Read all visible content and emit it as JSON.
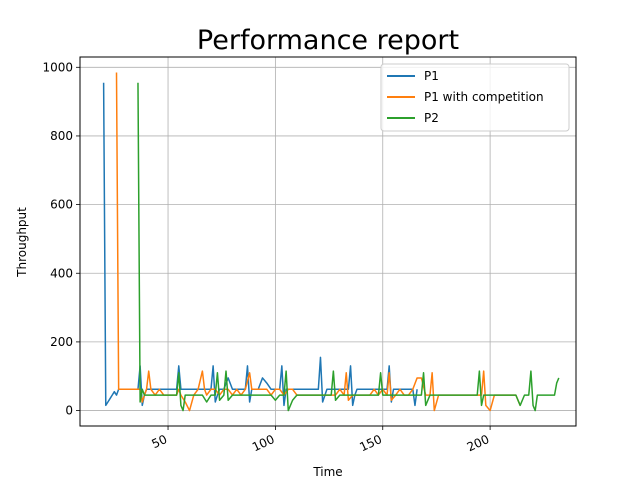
{
  "chart_data": {
    "type": "line",
    "title": "Performance report",
    "xlabel": "Time",
    "ylabel": "Throughput",
    "xlim": [
      9,
      240
    ],
    "ylim": [
      -45,
      1030
    ],
    "xticks": [
      50,
      100,
      150,
      200
    ],
    "yticks": [
      0,
      200,
      400,
      600,
      800,
      1000
    ],
    "xtick_rotation": 25,
    "grid": true,
    "legend_position": "top-right",
    "series": [
      {
        "name": "P1",
        "color": "#1f77b4",
        "x": [
          20,
          21,
          22,
          23,
          24,
          25,
          26,
          27,
          28,
          30,
          32,
          34,
          36,
          37,
          38,
          39,
          40,
          41,
          42,
          44,
          46,
          48,
          50,
          52,
          54,
          55,
          56,
          58,
          60,
          62,
          64,
          66,
          68,
          70,
          71,
          72,
          73,
          74,
          76,
          78,
          80,
          82,
          84,
          86,
          87,
          88,
          89,
          90,
          92,
          94,
          96,
          98,
          100,
          102,
          103,
          104,
          105,
          106,
          108,
          110,
          112,
          114,
          116,
          118,
          120,
          121,
          122,
          124,
          126,
          128,
          130,
          132,
          134,
          135,
          136,
          137,
          138,
          140,
          142,
          144,
          146,
          148,
          150,
          152,
          153,
          154,
          155,
          156,
          158,
          160,
          162,
          164,
          165,
          166
        ],
        "y": [
          955,
          15,
          25,
          35,
          45,
          55,
          45,
          62,
          62,
          62,
          62,
          62,
          62,
          130,
          15,
          45,
          62,
          62,
          62,
          62,
          62,
          62,
          62,
          62,
          62,
          130,
          62,
          62,
          62,
          62,
          62,
          62,
          62,
          62,
          130,
          25,
          45,
          62,
          62,
          95,
          62,
          62,
          62,
          62,
          130,
          25,
          62,
          62,
          62,
          95,
          80,
          62,
          62,
          62,
          130,
          15,
          62,
          62,
          62,
          62,
          62,
          62,
          62,
          62,
          62,
          155,
          25,
          62,
          62,
          62,
          62,
          62,
          62,
          130,
          15,
          45,
          62,
          62,
          62,
          62,
          62,
          62,
          62,
          62,
          130,
          25,
          62,
          62,
          62,
          62,
          62,
          62,
          15,
          62
        ]
      },
      {
        "name": "P1 with competition",
        "color": "#ff7f0e",
        "x": [
          26,
          27,
          28,
          30,
          32,
          34,
          36,
          37,
          38,
          39,
          40,
          41,
          42,
          44,
          46,
          48,
          50,
          52,
          54,
          55,
          56,
          58,
          60,
          62,
          64,
          66,
          67,
          68,
          70,
          72,
          74,
          76,
          78,
          80,
          82,
          84,
          86,
          88,
          89,
          90,
          92,
          94,
          96,
          98,
          100,
          102,
          104,
          106,
          108,
          110,
          112,
          114,
          116,
          118,
          120,
          122,
          124,
          126,
          128,
          130,
          132,
          133,
          134,
          136,
          138,
          140,
          142,
          144,
          146,
          148,
          150,
          152,
          153,
          154,
          156,
          158,
          160,
          162,
          164,
          166,
          168,
          170,
          172,
          173,
          174,
          176,
          178,
          180,
          182,
          184,
          186,
          188,
          190,
          192,
          194,
          196,
          197,
          198,
          200,
          202,
          204,
          206,
          208,
          210,
          212,
          214
        ],
        "y": [
          985,
          62,
          62,
          62,
          62,
          62,
          62,
          62,
          25,
          45,
          62,
          115,
          62,
          45,
          62,
          45,
          45,
          45,
          45,
          62,
          45,
          25,
          0,
          45,
          62,
          115,
          62,
          45,
          62,
          62,
          45,
          62,
          62,
          45,
          62,
          45,
          62,
          110,
          62,
          62,
          62,
          62,
          62,
          45,
          62,
          62,
          45,
          62,
          62,
          45,
          45,
          45,
          45,
          45,
          45,
          45,
          45,
          45,
          45,
          62,
          45,
          110,
          30,
          45,
          45,
          45,
          45,
          45,
          62,
          45,
          62,
          45,
          110,
          30,
          45,
          62,
          45,
          45,
          62,
          95,
          95,
          45,
          45,
          110,
          0,
          45,
          45,
          45,
          45,
          45,
          45,
          45,
          45,
          45,
          45,
          45,
          115,
          15,
          0,
          45,
          45,
          45,
          45,
          45,
          45,
          15
        ]
      },
      {
        "name": "P2",
        "color": "#2ca02c",
        "x": [
          36,
          37,
          38,
          39,
          40,
          42,
          44,
          46,
          48,
          50,
          52,
          54,
          55,
          56,
          57,
          58,
          60,
          62,
          64,
          66,
          68,
          70,
          72,
          73,
          74,
          76,
          77,
          78,
          80,
          82,
          84,
          86,
          88,
          90,
          92,
          94,
          96,
          98,
          100,
          102,
          104,
          105,
          106,
          108,
          110,
          112,
          114,
          116,
          118,
          120,
          122,
          124,
          126,
          127,
          128,
          130,
          132,
          134,
          136,
          138,
          140,
          142,
          144,
          146,
          148,
          149,
          150,
          152,
          154,
          156,
          158,
          160,
          162,
          164,
          166,
          168,
          169,
          170,
          172,
          174,
          176,
          178,
          180,
          182,
          184,
          186,
          188,
          190,
          192,
          194,
          195,
          196,
          197,
          198,
          200,
          202,
          204,
          206,
          208,
          210,
          212,
          214,
          216,
          218,
          219,
          220,
          221,
          222,
          224,
          226,
          228,
          230,
          231,
          232
        ],
        "y": [
          955,
          25,
          62,
          45,
          45,
          45,
          45,
          45,
          45,
          45,
          45,
          45,
          110,
          15,
          0,
          45,
          45,
          45,
          45,
          45,
          25,
          45,
          45,
          110,
          30,
          45,
          115,
          30,
          45,
          45,
          45,
          45,
          45,
          45,
          45,
          45,
          45,
          45,
          30,
          45,
          45,
          115,
          0,
          30,
          45,
          45,
          45,
          45,
          45,
          45,
          45,
          45,
          45,
          115,
          30,
          45,
          45,
          45,
          45,
          45,
          45,
          45,
          45,
          45,
          45,
          110,
          45,
          45,
          45,
          45,
          45,
          45,
          45,
          45,
          45,
          45,
          110,
          15,
          45,
          45,
          45,
          45,
          45,
          45,
          45,
          45,
          45,
          45,
          45,
          45,
          115,
          15,
          45,
          45,
          45,
          45,
          45,
          45,
          45,
          45,
          45,
          15,
          45,
          45,
          115,
          15,
          0,
          45,
          45,
          45,
          45,
          45,
          80,
          95
        ]
      }
    ]
  }
}
